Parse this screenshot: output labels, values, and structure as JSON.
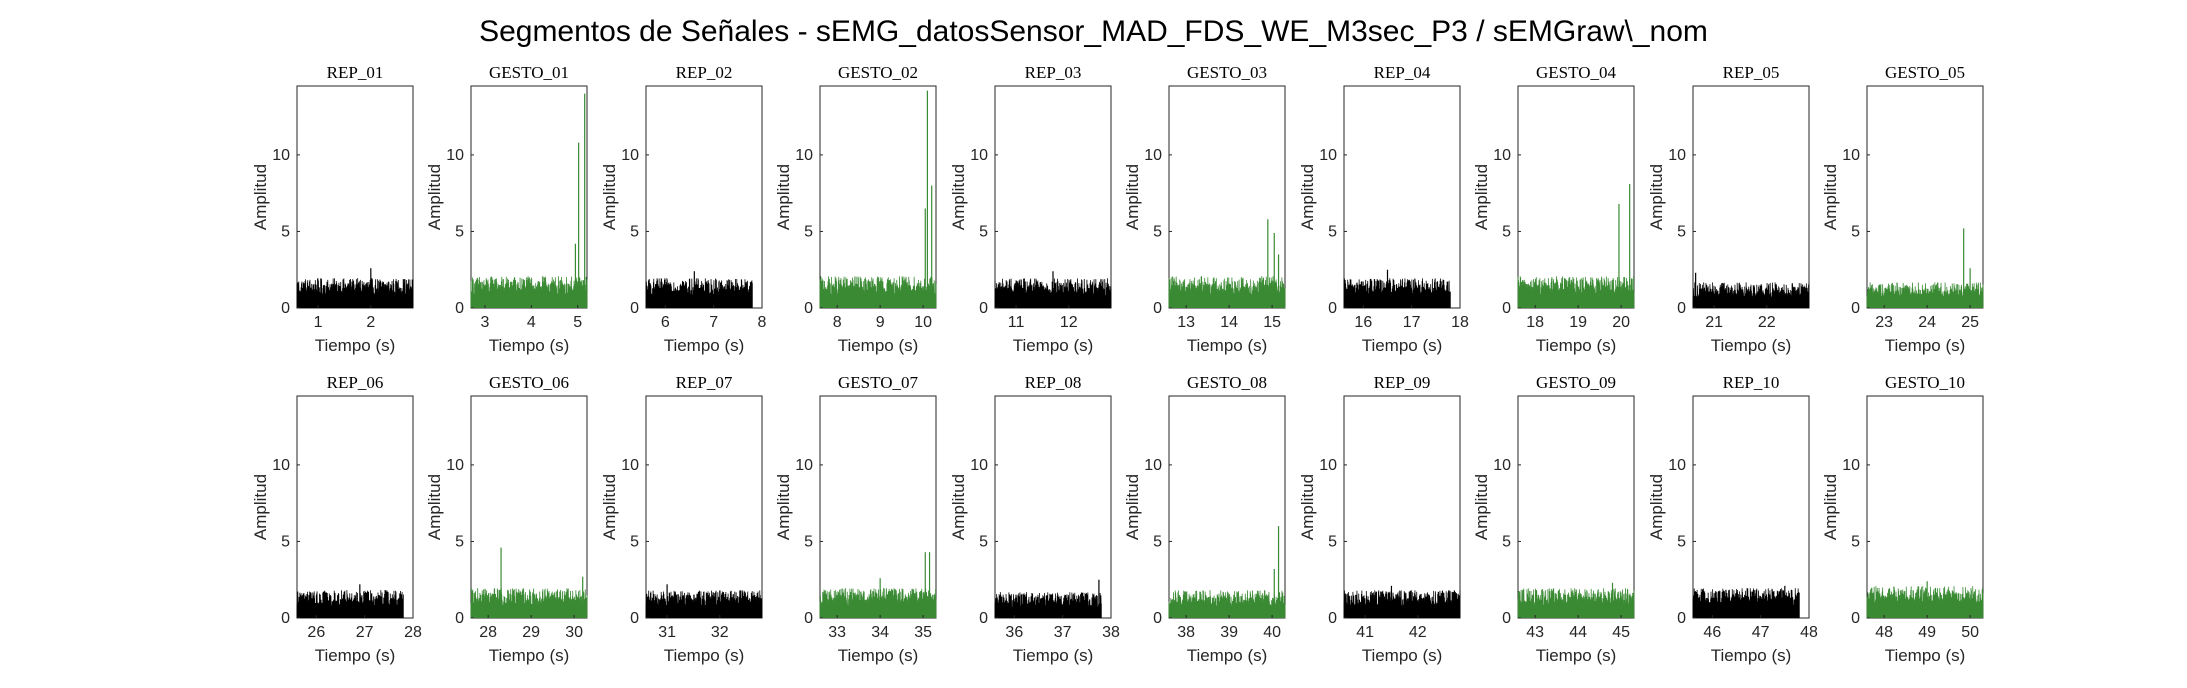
{
  "figure": {
    "title": "Segmentos de Señales - sEMG_datosSensor_MAD_FDS_WE_M3sec_P3 / sEMGraw\\_nom"
  },
  "colors": {
    "rep": "#000000",
    "gesto": "#3a8a34",
    "axis": "#262626"
  },
  "chart_data": [
    {
      "type": "line",
      "title": "REP_01",
      "color_key": "rep",
      "xlabel": "Tiempo (s)",
      "ylabel": "Amplitud",
      "xlim": [
        0.6,
        2.8
      ],
      "ylim": [
        0,
        14.5
      ],
      "xticks": [
        1,
        2
      ],
      "yticks": [
        0,
        5,
        10
      ],
      "series": [
        {
          "x": [
            0.6,
            2.8
          ],
          "level": 1.5,
          "spikes": [
            [
              2.0,
              2.6
            ]
          ],
          "end": 2.8
        }
      ]
    },
    {
      "type": "line",
      "title": "GESTO_01",
      "color_key": "gesto",
      "xlabel": "Tiempo (s)",
      "ylabel": "Amplitud",
      "xlim": [
        2.7,
        5.2
      ],
      "ylim": [
        0,
        14.5
      ],
      "xticks": [
        3,
        4,
        5
      ],
      "yticks": [
        0,
        5,
        10
      ],
      "series": [
        {
          "x": [
            2.7,
            5.2
          ],
          "level": 1.6,
          "spikes": [
            [
              4.95,
              4.2
            ],
            [
              5.02,
              10.8
            ],
            [
              5.15,
              14.0
            ]
          ],
          "end": 5.2
        }
      ]
    },
    {
      "type": "line",
      "title": "REP_02",
      "color_key": "rep",
      "xlabel": "Tiempo (s)",
      "ylabel": "Amplitud",
      "xlim": [
        5.6,
        8.0
      ],
      "ylim": [
        0,
        14.5
      ],
      "xticks": [
        6,
        7,
        8
      ],
      "yticks": [
        0,
        5,
        10
      ],
      "series": [
        {
          "x": [
            5.6,
            7.8
          ],
          "level": 1.5,
          "spikes": [
            [
              6.6,
              2.4
            ]
          ],
          "end": 7.8
        }
      ]
    },
    {
      "type": "line",
      "title": "GESTO_02",
      "color_key": "gesto",
      "xlabel": "Tiempo (s)",
      "ylabel": "Amplitud",
      "xlim": [
        7.6,
        10.3
      ],
      "ylim": [
        0,
        14.5
      ],
      "xticks": [
        8,
        9,
        10
      ],
      "yticks": [
        0,
        5,
        10
      ],
      "series": [
        {
          "x": [
            7.6,
            10.3
          ],
          "level": 1.6,
          "spikes": [
            [
              10.05,
              6.5
            ],
            [
              10.1,
              14.2
            ],
            [
              10.2,
              8.0
            ]
          ],
          "end": 10.3
        }
      ]
    },
    {
      "type": "line",
      "title": "REP_03",
      "color_key": "rep",
      "xlabel": "Tiempo (s)",
      "ylabel": "Amplitud",
      "xlim": [
        10.6,
        12.8
      ],
      "ylim": [
        0,
        14.5
      ],
      "xticks": [
        11,
        12
      ],
      "yticks": [
        0,
        5,
        10
      ],
      "series": [
        {
          "x": [
            10.6,
            12.8
          ],
          "level": 1.5,
          "spikes": [
            [
              11.7,
              2.4
            ]
          ],
          "end": 12.8
        }
      ]
    },
    {
      "type": "line",
      "title": "GESTO_03",
      "color_key": "gesto",
      "xlabel": "Tiempo (s)",
      "ylabel": "Amplitud",
      "xlim": [
        12.6,
        15.3
      ],
      "ylim": [
        0,
        14.5
      ],
      "xticks": [
        13,
        14,
        15
      ],
      "yticks": [
        0,
        5,
        10
      ],
      "series": [
        {
          "x": [
            12.6,
            15.3
          ],
          "level": 1.6,
          "spikes": [
            [
              14.9,
              5.8
            ],
            [
              15.05,
              4.9
            ],
            [
              15.15,
              3.5
            ]
          ],
          "end": 15.3
        }
      ]
    },
    {
      "type": "line",
      "title": "REP_04",
      "color_key": "rep",
      "xlabel": "Tiempo (s)",
      "ylabel": "Amplitud",
      "xlim": [
        15.6,
        18.0
      ],
      "ylim": [
        0,
        14.5
      ],
      "xticks": [
        16,
        17,
        18
      ],
      "yticks": [
        0,
        5,
        10
      ],
      "series": [
        {
          "x": [
            15.6,
            17.8
          ],
          "level": 1.5,
          "spikes": [
            [
              16.5,
              2.5
            ]
          ],
          "end": 17.8
        }
      ]
    },
    {
      "type": "line",
      "title": "GESTO_04",
      "color_key": "gesto",
      "xlabel": "Tiempo (s)",
      "ylabel": "Amplitud",
      "xlim": [
        17.6,
        20.3
      ],
      "ylim": [
        0,
        14.5
      ],
      "xticks": [
        18,
        19,
        20
      ],
      "yticks": [
        0,
        5,
        10
      ],
      "series": [
        {
          "x": [
            17.6,
            20.3
          ],
          "level": 1.6,
          "spikes": [
            [
              19.95,
              6.8
            ],
            [
              20.2,
              8.1
            ]
          ],
          "end": 20.3
        }
      ]
    },
    {
      "type": "line",
      "title": "REP_05",
      "color_key": "rep",
      "xlabel": "Tiempo (s)",
      "ylabel": "Amplitud",
      "xlim": [
        20.6,
        22.8
      ],
      "ylim": [
        0,
        14.5
      ],
      "xticks": [
        21,
        22
      ],
      "yticks": [
        0,
        5,
        10
      ],
      "series": [
        {
          "x": [
            20.6,
            22.8
          ],
          "level": 1.3,
          "spikes": [
            [
              20.65,
              2.3
            ]
          ],
          "end": 22.8
        }
      ]
    },
    {
      "type": "line",
      "title": "GESTO_05",
      "color_key": "gesto",
      "xlabel": "Tiempo (s)",
      "ylabel": "Amplitud",
      "xlim": [
        22.6,
        25.3
      ],
      "ylim": [
        0,
        14.5
      ],
      "xticks": [
        23,
        24,
        25
      ],
      "yticks": [
        0,
        5,
        10
      ],
      "series": [
        {
          "x": [
            22.6,
            25.3
          ],
          "level": 1.3,
          "spikes": [
            [
              24.85,
              5.2
            ],
            [
              25.0,
              2.6
            ]
          ],
          "end": 25.3
        }
      ]
    },
    {
      "type": "line",
      "title": "REP_06",
      "color_key": "rep",
      "xlabel": "Tiempo (s)",
      "ylabel": "Amplitud",
      "xlim": [
        25.6,
        28.0
      ],
      "ylim": [
        0,
        14.5
      ],
      "xticks": [
        26,
        27,
        28
      ],
      "yticks": [
        0,
        5,
        10
      ],
      "series": [
        {
          "x": [
            25.6,
            27.8
          ],
          "level": 1.4,
          "spikes": [
            [
              26.9,
              2.2
            ]
          ],
          "end": 27.8
        }
      ]
    },
    {
      "type": "line",
      "title": "GESTO_06",
      "color_key": "gesto",
      "xlabel": "Tiempo (s)",
      "ylabel": "Amplitud",
      "xlim": [
        27.6,
        30.3
      ],
      "ylim": [
        0,
        14.5
      ],
      "xticks": [
        28,
        29,
        30
      ],
      "yticks": [
        0,
        5,
        10
      ],
      "series": [
        {
          "x": [
            27.6,
            30.3
          ],
          "level": 1.5,
          "spikes": [
            [
              28.3,
              4.6
            ],
            [
              30.2,
              2.7
            ]
          ],
          "end": 30.3
        }
      ]
    },
    {
      "type": "line",
      "title": "REP_07",
      "color_key": "rep",
      "xlabel": "Tiempo (s)",
      "ylabel": "Amplitud",
      "xlim": [
        30.6,
        32.8
      ],
      "ylim": [
        0,
        14.5
      ],
      "xticks": [
        31,
        32
      ],
      "yticks": [
        0,
        5,
        10
      ],
      "series": [
        {
          "x": [
            30.6,
            32.8
          ],
          "level": 1.4,
          "spikes": [
            [
              31.0,
              2.2
            ]
          ],
          "end": 32.8
        }
      ]
    },
    {
      "type": "line",
      "title": "GESTO_07",
      "color_key": "gesto",
      "xlabel": "Tiempo (s)",
      "ylabel": "Amplitud",
      "xlim": [
        32.6,
        35.3
      ],
      "ylim": [
        0,
        14.5
      ],
      "xticks": [
        33,
        34,
        35
      ],
      "yticks": [
        0,
        5,
        10
      ],
      "series": [
        {
          "x": [
            32.6,
            35.3
          ],
          "level": 1.5,
          "spikes": [
            [
              34.0,
              2.6
            ],
            [
              35.05,
              4.3
            ],
            [
              35.15,
              4.3
            ]
          ],
          "end": 35.3
        }
      ]
    },
    {
      "type": "line",
      "title": "REP_08",
      "color_key": "rep",
      "xlabel": "Tiempo (s)",
      "ylabel": "Amplitud",
      "xlim": [
        35.6,
        38.0
      ],
      "ylim": [
        0,
        14.5
      ],
      "xticks": [
        36,
        37,
        38
      ],
      "yticks": [
        0,
        5,
        10
      ],
      "series": [
        {
          "x": [
            35.6,
            37.8
          ],
          "level": 1.3,
          "spikes": [
            [
              37.75,
              2.5
            ]
          ],
          "end": 37.8
        }
      ]
    },
    {
      "type": "line",
      "title": "GESTO_08",
      "color_key": "gesto",
      "xlabel": "Tiempo (s)",
      "ylabel": "Amplitud",
      "xlim": [
        37.6,
        40.3
      ],
      "ylim": [
        0,
        14.5
      ],
      "xticks": [
        38,
        39,
        40
      ],
      "yticks": [
        0,
        5,
        10
      ],
      "series": [
        {
          "x": [
            37.6,
            40.3
          ],
          "level": 1.4,
          "spikes": [
            [
              40.05,
              3.2
            ],
            [
              40.15,
              6.0
            ]
          ],
          "end": 40.3
        }
      ]
    },
    {
      "type": "line",
      "title": "REP_09",
      "color_key": "rep",
      "xlabel": "Tiempo (s)",
      "ylabel": "Amplitud",
      "xlim": [
        40.6,
        42.8
      ],
      "ylim": [
        0,
        14.5
      ],
      "xticks": [
        41,
        42
      ],
      "yticks": [
        0,
        5,
        10
      ],
      "series": [
        {
          "x": [
            40.6,
            42.8
          ],
          "level": 1.4,
          "spikes": [
            [
              41.5,
              2.1
            ]
          ],
          "end": 42.8
        }
      ]
    },
    {
      "type": "line",
      "title": "GESTO_09",
      "color_key": "gesto",
      "xlabel": "Tiempo (s)",
      "ylabel": "Amplitud",
      "xlim": [
        42.6,
        45.3
      ],
      "ylim": [
        0,
        14.5
      ],
      "xticks": [
        43,
        44,
        45
      ],
      "yticks": [
        0,
        5,
        10
      ],
      "series": [
        {
          "x": [
            42.6,
            45.3
          ],
          "level": 1.5,
          "spikes": [
            [
              44.8,
              2.3
            ]
          ],
          "end": 45.3
        }
      ]
    },
    {
      "type": "line",
      "title": "REP_10",
      "color_key": "rep",
      "xlabel": "Tiempo (s)",
      "ylabel": "Amplitud",
      "xlim": [
        45.6,
        48.0
      ],
      "ylim": [
        0,
        14.5
      ],
      "xticks": [
        46,
        47,
        48
      ],
      "yticks": [
        0,
        5,
        10
      ],
      "series": [
        {
          "x": [
            45.6,
            47.8
          ],
          "level": 1.5,
          "spikes": [
            [
              47.5,
              2.1
            ]
          ],
          "end": 47.8
        }
      ]
    },
    {
      "type": "line",
      "title": "GESTO_10",
      "color_key": "gesto",
      "xlabel": "Tiempo (s)",
      "ylabel": "Amplitud",
      "xlim": [
        47.6,
        50.3
      ],
      "ylim": [
        0,
        14.5
      ],
      "xticks": [
        48,
        49,
        50
      ],
      "yticks": [
        0,
        5,
        10
      ],
      "series": [
        {
          "x": [
            47.6,
            50.3
          ],
          "level": 1.6,
          "spikes": [
            [
              49.0,
              2.4
            ]
          ],
          "end": 50.3
        }
      ]
    }
  ]
}
